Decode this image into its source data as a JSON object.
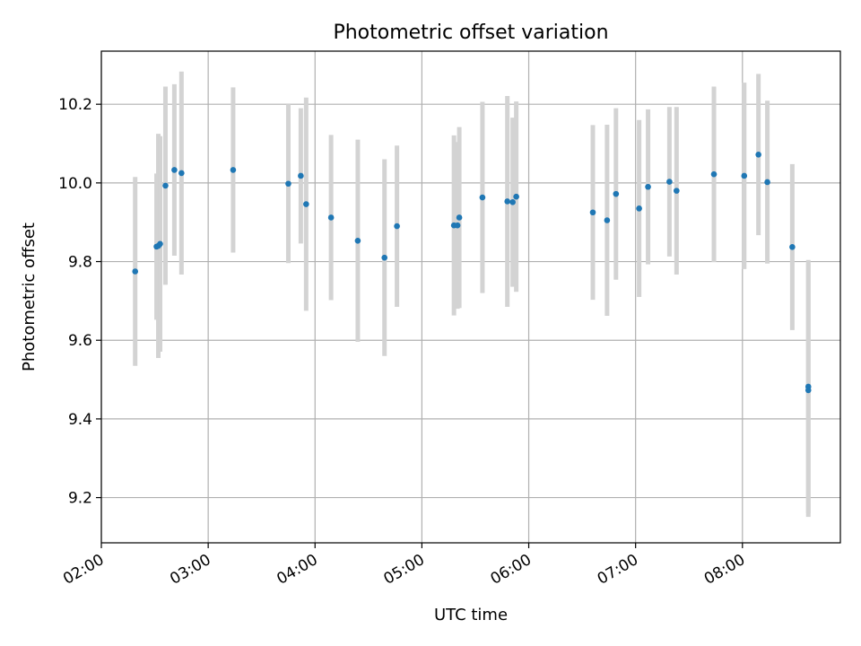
{
  "chart_data": {
    "type": "scatter",
    "title": "Photometric offset variation",
    "xlabel": "UTC time",
    "ylabel": "Photometric offset",
    "xlim": [
      "02:00",
      "08:55"
    ],
    "ylim": [
      9.085,
      10.335
    ],
    "grid": true,
    "x_ticks": [
      "02:00",
      "03:00",
      "04:00",
      "05:00",
      "06:00",
      "07:00",
      "08:00"
    ],
    "y_ticks": [
      "9.2",
      "9.4",
      "9.6",
      "9.8",
      "10.0",
      "10.2"
    ],
    "colors": {
      "points": "#1f77b4",
      "error_bars": "#d3d3d3",
      "grid": "#b0b0b0"
    },
    "series": [
      {
        "points": [
          {
            "x": "02:19",
            "y": 9.775,
            "err": 0.24
          },
          {
            "x": "02:31",
            "y": 9.838,
            "err": 0.186
          },
          {
            "x": "02:32",
            "y": 9.84,
            "err": 0.285
          },
          {
            "x": "02:33",
            "y": 9.845,
            "err": 0.274
          },
          {
            "x": "02:36",
            "y": 9.993,
            "err": 0.252
          },
          {
            "x": "02:41",
            "y": 10.033,
            "err": 0.218
          },
          {
            "x": "02:45",
            "y": 10.025,
            "err": 0.258
          },
          {
            "x": "03:14",
            "y": 10.033,
            "err": 0.21
          },
          {
            "x": "03:45",
            "y": 9.998,
            "err": 0.202
          },
          {
            "x": "03:52",
            "y": 10.018,
            "err": 0.172
          },
          {
            "x": "03:55",
            "y": 9.946,
            "err": 0.271
          },
          {
            "x": "04:09",
            "y": 9.912,
            "err": 0.21
          },
          {
            "x": "04:24",
            "y": 9.853,
            "err": 0.257
          },
          {
            "x": "04:39",
            "y": 9.81,
            "err": 0.25
          },
          {
            "x": "04:46",
            "y": 9.89,
            "err": 0.205
          },
          {
            "x": "05:18",
            "y": 9.892,
            "err": 0.229
          },
          {
            "x": "05:20",
            "y": 9.892,
            "err": 0.212
          },
          {
            "x": "05:21",
            "y": 9.912,
            "err": 0.23
          },
          {
            "x": "05:34",
            "y": 9.963,
            "err": 0.243
          },
          {
            "x": "05:48",
            "y": 9.953,
            "err": 0.268
          },
          {
            "x": "05:51",
            "y": 9.951,
            "err": 0.215
          },
          {
            "x": "05:53",
            "y": 9.965,
            "err": 0.242
          },
          {
            "x": "06:36",
            "y": 9.925,
            "err": 0.222
          },
          {
            "x": "06:44",
            "y": 9.905,
            "err": 0.243
          },
          {
            "x": "06:49",
            "y": 9.972,
            "err": 0.218
          },
          {
            "x": "07:02",
            "y": 9.935,
            "err": 0.225
          },
          {
            "x": "07:07",
            "y": 9.99,
            "err": 0.197
          },
          {
            "x": "07:19",
            "y": 10.003,
            "err": 0.19
          },
          {
            "x": "07:23",
            "y": 9.98,
            "err": 0.213
          },
          {
            "x": "07:44",
            "y": 10.022,
            "err": 0.223
          },
          {
            "x": "08:01",
            "y": 10.018,
            "err": 0.237
          },
          {
            "x": "08:09",
            "y": 10.072,
            "err": 0.205
          },
          {
            "x": "08:14",
            "y": 10.002,
            "err": 0.207
          },
          {
            "x": "08:28",
            "y": 9.837,
            "err": 0.211
          },
          {
            "x": "08:37",
            "y": 9.482,
            "err": 0.322
          },
          {
            "x": "08:37",
            "y": 9.473,
            "err": 0.322
          }
        ]
      }
    ]
  }
}
